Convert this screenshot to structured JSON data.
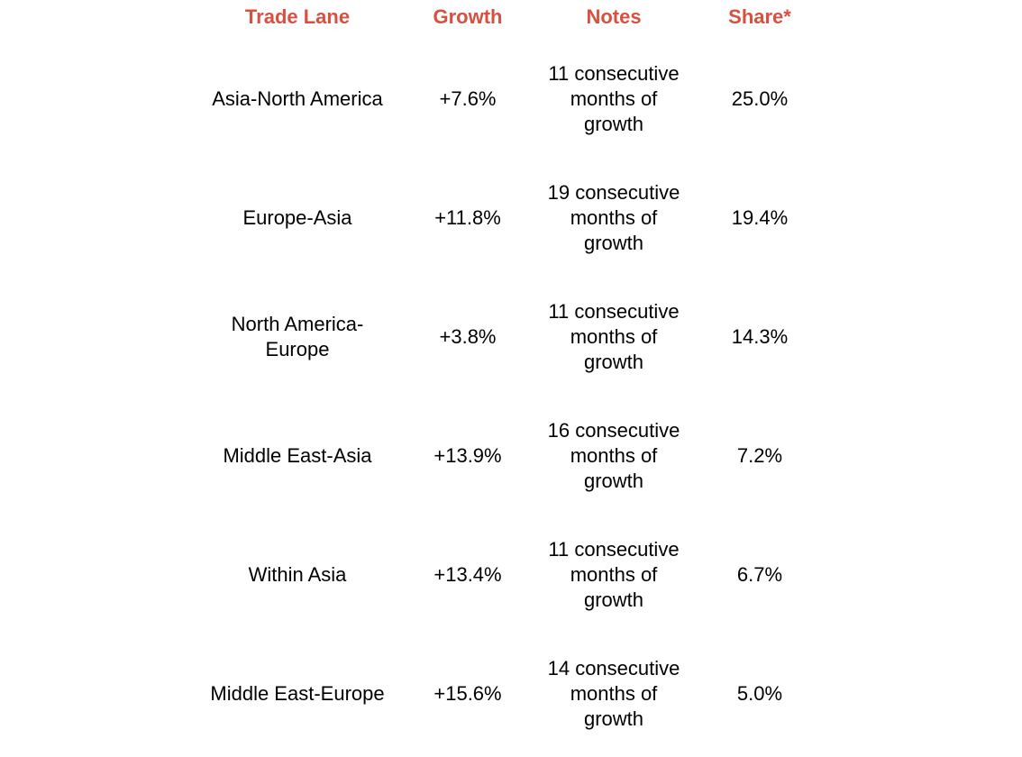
{
  "header_color": "#d8503f",
  "headers": {
    "lane": "Trade Lane",
    "growth": "Growth",
    "notes": "Notes",
    "share": "Share*"
  },
  "rows": [
    {
      "lane": "Asia-North America",
      "growth": "+7.6%",
      "notes": "11 consecutive months of growth",
      "share": "25.0%"
    },
    {
      "lane": "Europe-Asia",
      "growth": "+11.8%",
      "notes": "19 consecutive months of growth",
      "share": "19.4%"
    },
    {
      "lane": "North America-Europe",
      "growth": "+3.8%",
      "notes": "11 consecutive months of growth",
      "share": "14.3%"
    },
    {
      "lane": "Middle East-Asia",
      "growth": "+13.9%",
      "notes": "16 consecutive months of growth",
      "share": "7.2%"
    },
    {
      "lane": "Within Asia",
      "growth": "+13.4%",
      "notes": "11 consecutive months of growth",
      "share": "6.7%"
    },
    {
      "lane": "Middle East-Europe",
      "growth": "+15.6%",
      "notes": "14 consecutive months of growth",
      "share": "5.0%"
    }
  ]
}
